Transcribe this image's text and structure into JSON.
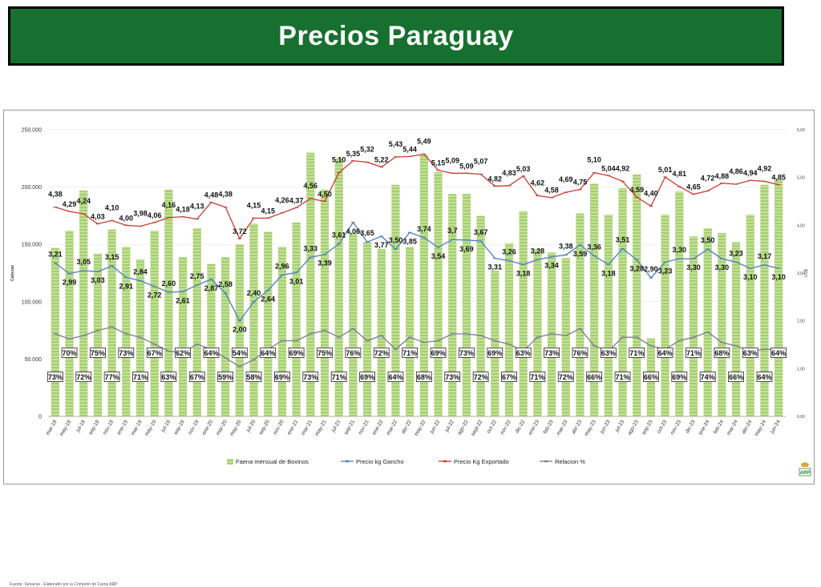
{
  "header": {
    "title": "Precios Paraguay"
  },
  "source_note": "Fuente: Senacsa - Elaborado por la Comisión de Carne ARP",
  "colors": {
    "banner": "#17702f",
    "bars": "#a6cf6e",
    "gancho": "#4a7fc0",
    "exportado": "#cc3b32",
    "relacion": "#7a7a96"
  },
  "chart_data": {
    "type": "bar+line",
    "categories": [
      "mar-18",
      "may-18",
      "jul-18",
      "sep-18",
      "nov-18",
      "ene-19",
      "mar-19",
      "may-19",
      "jul-19",
      "sep-19",
      "nov-19",
      "ene-20",
      "mar-20",
      "may-20",
      "jul-20",
      "sep-20",
      "nov-20",
      "ene-21",
      "mar-21",
      "may-21",
      "jul-21",
      "sep-21",
      "nov-21",
      "ene-22",
      "mar-22",
      "abr-22",
      "may-22",
      "jun-22",
      "jul-22",
      "ago-22",
      "sep-22",
      "oct-22",
      "nov-22",
      "dic-22",
      "ene-23",
      "feb-23",
      "mar-23",
      "abr-23",
      "may-23",
      "jun-23",
      "jul-23",
      "ago-23",
      "sep-23",
      "oct-23",
      "nov-23",
      "dic-23",
      "ene-24",
      "feb-24",
      "mar-24",
      "abr-24",
      "may-24",
      "jun-24"
    ],
    "x_tick_labels": [
      "mar-18",
      "may-18",
      "jul-18",
      "sep-18",
      "nov-18",
      "ene-19",
      "mar-19",
      "may-19",
      "jul-19",
      "sep-19",
      "nov-19",
      "ene-20",
      "mar-20",
      "may-20",
      "jul-20",
      "sep-20",
      "nov-20",
      "ene-21",
      "mar-21",
      "may-21",
      "jul-21",
      "sep-21",
      "nov-21",
      "ene-22",
      "mar-22",
      "abr-22",
      "may-22",
      "jun-22",
      "jul-22",
      "ago-22",
      "sept-22",
      "oct-22",
      "nov-22",
      "dic-22",
      "ene-23",
      "feb-23",
      "mar-23",
      "abr-23",
      "may-23",
      "jun-23",
      "jul-23",
      "ago-23",
      "sep-23",
      "oct-23",
      "nov-23",
      "dic-23",
      "ene-24",
      "feb-24",
      "mar-24",
      "abr-24",
      "may-24",
      "jun-24"
    ],
    "y_left": {
      "label": "Cabezas",
      "min": 0,
      "max": 250000,
      "ticks": [
        "0",
        "50.000",
        "100.000",
        "150.000",
        "200.000",
        "250.000"
      ]
    },
    "y_right": {
      "label": "US$",
      "min": 0,
      "max": 6,
      "ticks": [
        "0,00",
        "1,00",
        "2,00",
        "3,00",
        "4,00",
        "5,00",
        "6,00"
      ]
    },
    "bars": {
      "name": "Faena mensual de Bovinos",
      "values": [
        147000,
        162000,
        197000,
        142000,
        163000,
        148000,
        137000,
        162000,
        198000,
        139000,
        164000,
        133000,
        139000,
        150000,
        168000,
        161000,
        148000,
        169000,
        230000,
        198000,
        225000,
        160000,
        152000,
        146000,
        202000,
        148000,
        228000,
        213000,
        194000,
        194000,
        175000,
        127000,
        151000,
        179000,
        146000,
        143000,
        138000,
        177000,
        203000,
        176000,
        199000,
        211000,
        68000,
        176000,
        196000,
        157000,
        164000,
        160000,
        152000,
        176000,
        202000,
        207000
      ]
    },
    "series": [
      {
        "name": "Precio kg Gancho",
        "values": [
          3.21,
          2.99,
          3.05,
          3.03,
          3.15,
          2.91,
          2.84,
          2.72,
          2.6,
          2.61,
          2.75,
          2.87,
          2.58,
          2.0,
          2.4,
          2.64,
          2.96,
          3.01,
          3.33,
          3.39,
          3.61,
          4.06,
          3.65,
          3.77,
          3.5,
          3.85,
          3.74,
          3.54,
          3.7,
          3.69,
          3.67,
          3.31,
          3.26,
          3.18,
          3.28,
          3.34,
          3.38,
          3.59,
          3.36,
          3.18,
          3.51,
          3.28,
          2.9,
          3.23,
          3.3,
          3.3,
          3.5,
          3.3,
          3.23,
          3.1,
          3.17,
          3.1
        ],
        "labels": [
          "3,21",
          "2,99",
          "3,05",
          "3,03",
          "3,15",
          "2,91",
          "2,84",
          "2,72",
          "2,60",
          "2,61",
          "2,75",
          "2,87",
          "2,58",
          "2,00",
          "2,40",
          "2,64",
          "2,96",
          "3,01",
          "3,33",
          "3,39",
          "3,61",
          "4,06",
          "3,65",
          "3,77",
          "3,50",
          "3,85",
          "3,74",
          "3,54",
          "3,7",
          "3,69",
          "3,67",
          "3,31",
          "3,26",
          "3,18",
          "3,28",
          "3,34",
          "3,38",
          "3,59",
          "3,36",
          "3,18",
          "3,51",
          "3,28",
          "2,90",
          "3,23",
          "3,30",
          "3,30",
          "3,50",
          "3,30",
          "3,23",
          "3,10",
          "3,17",
          "3,10"
        ]
      },
      {
        "name": "Precio Kg Exportado",
        "values": [
          4.38,
          4.29,
          4.24,
          4.03,
          4.1,
          4.0,
          3.98,
          4.06,
          4.16,
          4.18,
          4.13,
          4.48,
          4.38,
          3.72,
          4.15,
          4.15,
          4.26,
          4.37,
          4.56,
          4.5,
          5.1,
          5.35,
          5.32,
          5.22,
          5.43,
          5.44,
          5.49,
          5.15,
          5.09,
          5.09,
          5.07,
          4.82,
          4.83,
          5.03,
          4.62,
          4.58,
          4.69,
          4.75,
          5.1,
          5.04,
          4.92,
          4.59,
          4.4,
          5.01,
          4.81,
          4.65,
          4.72,
          4.88,
          4.86,
          4.94,
          4.92,
          4.85
        ],
        "labels": [
          "4,38",
          "4,29",
          "4,24",
          "4,03",
          "4,10",
          "4,00",
          "3,98",
          "4,06",
          "4,16",
          "4,18",
          "4,13",
          "4,48",
          "4,38",
          "3,72",
          "4,15",
          "4,15",
          "4,26",
          "4,37",
          "4,56",
          "4,50",
          "5,10",
          "5,35",
          "5,32",
          "5,22",
          "5,43",
          "5,44",
          "5,49",
          "5,15",
          "5,09",
          "5,09",
          "5,07",
          "4,82",
          "4,83",
          "5,03",
          "4,62",
          "4,58",
          "4,69",
          "4,75",
          "5,10",
          "5,04",
          "4,92",
          "4,59",
          "4,40",
          "5,01",
          "4,81",
          "4,65",
          "4,72",
          "4,88",
          "4,86",
          "4,94",
          "4,92",
          "4,85"
        ]
      },
      {
        "name": "Relacion %",
        "values": [
          73,
          70,
          72,
          75,
          77,
          73,
          71,
          67,
          63,
          62,
          67,
          64,
          59,
          54,
          58,
          64,
          69,
          69,
          73,
          75,
          71,
          76,
          69,
          72,
          64,
          71,
          68,
          69,
          73,
          73,
          72,
          69,
          67,
          63,
          71,
          73,
          72,
          76,
          66,
          63,
          71,
          71,
          66,
          64,
          69,
          71,
          74,
          68,
          66,
          63,
          64,
          64
        ],
        "labels": [
          "73%",
          "70%",
          "72%",
          "75%",
          "77%",
          "73%",
          "71%",
          "67%",
          "63%",
          "62%",
          "67%",
          "64%",
          "59%",
          "54%",
          "58%",
          "64%",
          "69%",
          "69%",
          "73%",
          "75%",
          "71%",
          "76%",
          "69%",
          "72%",
          "64%",
          "71%",
          "68%",
          "69%",
          "73%",
          "73%",
          "72%",
          "69%",
          "67%",
          "63%",
          "71%",
          "73%",
          "72%",
          "76%",
          "66%",
          "63%",
          "71%",
          "71%",
          "66%",
          "64%",
          "69%",
          "71%",
          "74%",
          "68%",
          "66%",
          "63%",
          "64%",
          "64%"
        ]
      }
    ],
    "legend": {
      "position": "bottom"
    }
  }
}
